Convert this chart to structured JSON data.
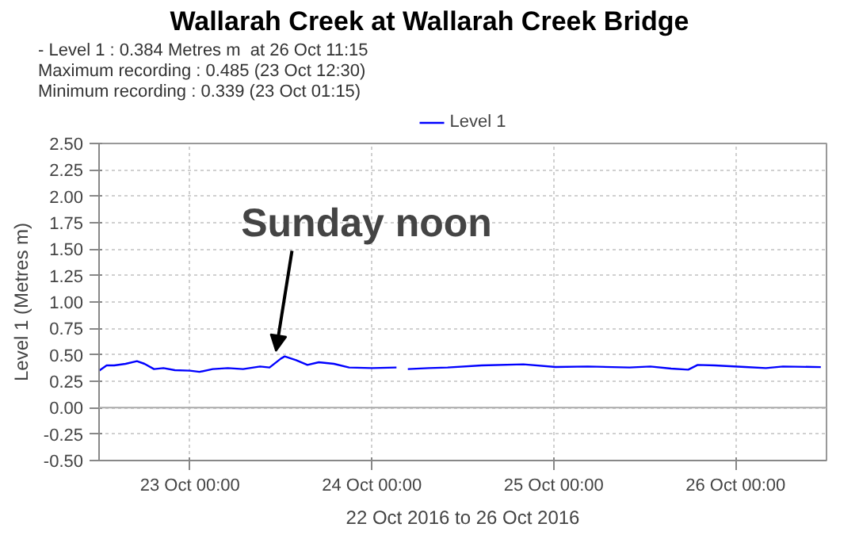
{
  "chart_data": {
    "type": "line",
    "title": "Wallarah Creek at Wallarah Creek Bridge",
    "annotations": [
      "- Level 1 : 0.384 Metres m  at 26 Oct 11:15",
      "Maximum recording : 0.485 (23 Oct 12:30)",
      "Minimum recording : 0.339 (23 Oct 01:15)",
      {
        "text": "Sunday noon",
        "x": "2016-10-23T12:30",
        "y": 0.485
      }
    ],
    "xlabel": "22 Oct 2016 to 26 Oct 2016",
    "ylabel": "Level 1 (Metres m)",
    "x": [
      "2016-10-22T12:00",
      "2016-10-22T13:00",
      "2016-10-22T14:00",
      "2016-10-22T15:30",
      "2016-10-22T17:00",
      "2016-10-22T18:00",
      "2016-10-22T19:15",
      "2016-10-22T20:30",
      "2016-10-22T22:00",
      "2016-10-23T00:00",
      "2016-10-23T01:15",
      "2016-10-23T03:00",
      "2016-10-23T05:00",
      "2016-10-23T07:00",
      "2016-10-23T09:15",
      "2016-10-23T10:30",
      "2016-10-23T12:00",
      "2016-10-23T12:30",
      "2016-10-23T14:00",
      "2016-10-23T15:30",
      "2016-10-23T17:00",
      "2016-10-23T19:00",
      "2016-10-23T21:00",
      "2016-10-24T00:00",
      "2016-10-24T03:15",
      "2016-10-24T04:00",
      "2016-10-24T04:45",
      "2016-10-24T07:30",
      "2016-10-24T10:00",
      "2016-10-24T14:30",
      "2016-10-24T20:00",
      "2016-10-25T00:15",
      "2016-10-25T04:30",
      "2016-10-25T10:00",
      "2016-10-25T12:45",
      "2016-10-25T15:30",
      "2016-10-25T17:45",
      "2016-10-25T19:00",
      "2016-10-25T21:15",
      "2016-10-26T01:15",
      "2016-10-26T04:00",
      "2016-10-26T06:15",
      "2016-10-26T11:15"
    ],
    "series": [
      {
        "name": "Level 1",
        "color": "#0000ff",
        "values": [
          0.35,
          0.4,
          0.4,
          0.415,
          0.44,
          0.415,
          0.365,
          0.375,
          0.355,
          0.35,
          0.339,
          0.365,
          0.375,
          0.365,
          0.39,
          0.38,
          0.465,
          0.485,
          0.45,
          0.405,
          0.43,
          0.415,
          0.38,
          0.375,
          0.38,
          null,
          0.365,
          0.375,
          0.38,
          0.4,
          0.41,
          0.385,
          0.39,
          0.38,
          0.39,
          0.37,
          0.36,
          0.405,
          0.4,
          0.385,
          0.375,
          0.39,
          0.384
        ]
      }
    ],
    "xlim": [
      "2016-10-22T12:00",
      "2016-10-26T12:00"
    ],
    "xticks": [
      {
        "value": "2016-10-23T00:00",
        "label": "23 Oct 00:00"
      },
      {
        "value": "2016-10-24T00:00",
        "label": "24 Oct 00:00"
      },
      {
        "value": "2016-10-25T00:00",
        "label": "25 Oct 00:00"
      },
      {
        "value": "2016-10-26T00:00",
        "label": "26 Oct 00:00"
      }
    ],
    "ylim": [
      -0.5,
      2.5
    ],
    "yticks": [
      {
        "value": -0.5,
        "label": "-0.50"
      },
      {
        "value": -0.25,
        "label": "-0.25"
      },
      {
        "value": 0,
        "label": "0.00"
      },
      {
        "value": 0.25,
        "label": "0.25"
      },
      {
        "value": 0.5,
        "label": "0.50"
      },
      {
        "value": 0.75,
        "label": "0.75"
      },
      {
        "value": 1,
        "label": "1.00"
      },
      {
        "value": 1.25,
        "label": "1.25"
      },
      {
        "value": 1.5,
        "label": "1.50"
      },
      {
        "value": 1.75,
        "label": "1.75"
      },
      {
        "value": 2,
        "label": "2.00"
      },
      {
        "value": 2.25,
        "label": "2.25"
      },
      {
        "value": 2.5,
        "label": "2.50"
      }
    ],
    "ref_lines": [
      {
        "axis": "y",
        "value": 0,
        "color": "#aaaaaa"
      }
    ],
    "grid": true,
    "legend": "top",
    "line_style": "solid",
    "marker": "none"
  }
}
